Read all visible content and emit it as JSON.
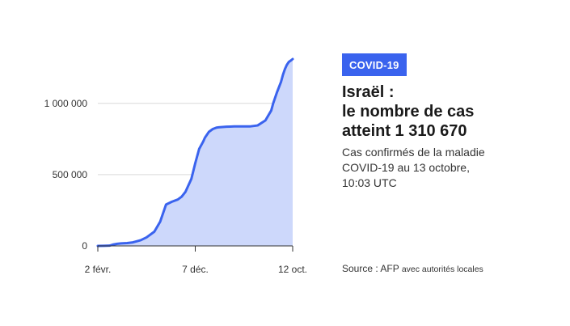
{
  "chart_data": {
    "type": "area",
    "title": "",
    "xlabel": "",
    "ylabel": "",
    "ylim": [
      0,
      1310670
    ],
    "grid": true,
    "x_tick_labels": [
      "2 févr.",
      "7 déc.",
      "12 oct."
    ],
    "y_tick_labels": [
      "0",
      "500 000",
      "1 000 000"
    ],
    "y_ticks": [
      0,
      500000,
      1000000
    ],
    "x_range": [
      0,
      100
    ],
    "x_ticks": [
      0,
      50,
      100
    ],
    "series": [
      {
        "x": [
          0,
          3,
          6,
          8,
          10,
          12,
          15,
          18,
          22,
          25,
          29,
          32,
          35,
          38,
          41,
          43,
          45,
          48,
          50,
          52,
          54,
          55,
          57,
          59,
          61,
          62,
          64,
          66,
          68,
          70,
          72,
          75,
          78,
          82,
          86,
          89,
          90,
          92,
          94,
          95,
          96,
          97,
          98,
          99,
          100
        ],
        "values": [
          0,
          1000,
          2000,
          10000,
          15000,
          18000,
          20000,
          25000,
          40000,
          60000,
          100000,
          170000,
          290000,
          310000,
          325000,
          345000,
          380000,
          470000,
          580000,
          680000,
          730000,
          760000,
          800000,
          820000,
          830000,
          832000,
          834000,
          836000,
          837000,
          838000,
          838000,
          838000,
          838000,
          845000,
          880000,
          950000,
          1000000,
          1080000,
          1150000,
          1200000,
          1240000,
          1270000,
          1290000,
          1300000,
          1310670
        ]
      }
    ],
    "colors": {
      "line": "#3a63ee",
      "fill": "#cdd8fb",
      "grid": "#d9d9d9",
      "axis": "#333333"
    }
  },
  "panel": {
    "badge": "COVID-19",
    "title_line1": "Israël :",
    "title_line2": "le nombre de cas",
    "title_line3": "atteint 1 310 670",
    "subtitle_line1": "Cas confirmés de la maladie",
    "subtitle_line2": "COVID-19 au 13 octobre,",
    "subtitle_line3": "10:03 UTC"
  },
  "source": {
    "main": "Source : AFP",
    "detail": "avec autorités locales"
  }
}
